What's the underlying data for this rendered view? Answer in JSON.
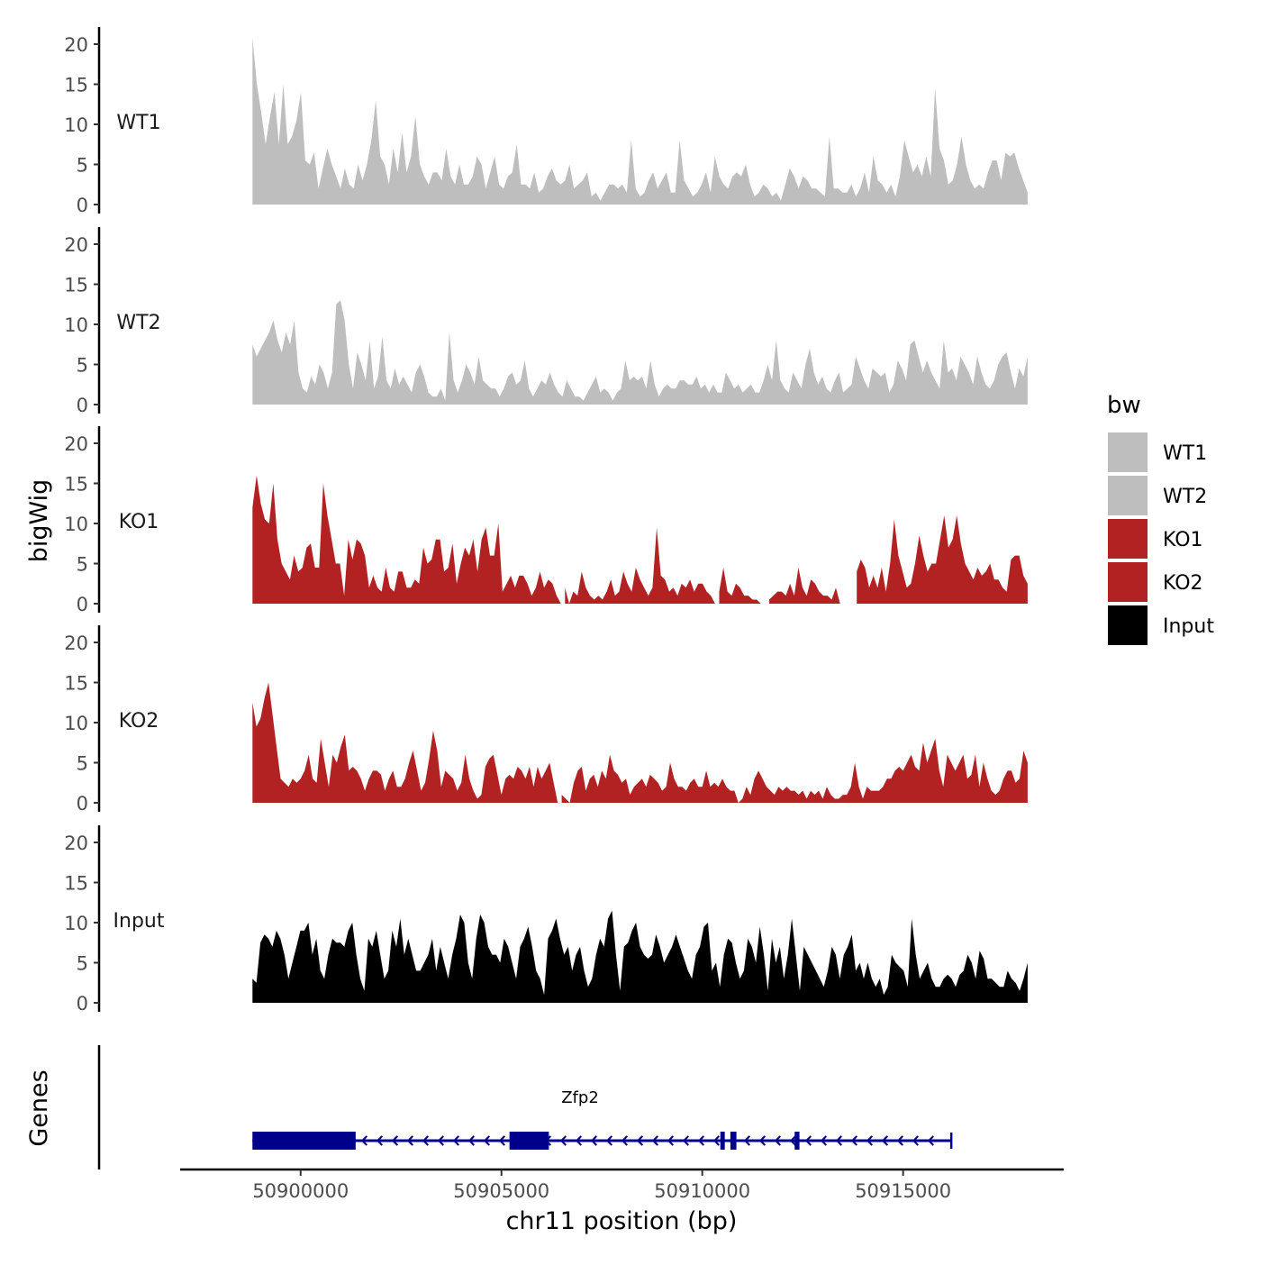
{
  "chart_data": {
    "type": "area",
    "title": "",
    "xlabel": "chr11 position (bp)",
    "ylabel": "bigWig",
    "genes_panel_label": "Genes",
    "xlim": [
      50897000,
      50919000
    ],
    "ylim": [
      0,
      21
    ],
    "x_ticks": [
      50900000,
      50905000,
      50910000,
      50915000
    ],
    "x_tick_labels": [
      "50900000",
      "50905000",
      "50910000",
      "50915000"
    ],
    "y_ticks": [
      0,
      5,
      10,
      15,
      20
    ],
    "y_tick_labels": [
      "0",
      "5",
      "10",
      "15",
      "20"
    ],
    "legend": {
      "title": "bw",
      "position": "right",
      "entries": [
        {
          "label": "WT1",
          "color": "#bebebe"
        },
        {
          "label": "WT2",
          "color": "#bebebe"
        },
        {
          "label": "KO1",
          "color": "#b22222"
        },
        {
          "label": "KO2",
          "color": "#b22222"
        },
        {
          "label": "Input",
          "color": "#000000"
        }
      ]
    },
    "region_start": 50898800,
    "region_end": 50918100,
    "series": [
      {
        "name": "WT1",
        "color": "#bebebe",
        "values": [
          20.8,
          15,
          11.5,
          7.5,
          11,
          14,
          7.5,
          15,
          7.5,
          8.5,
          10.5,
          14,
          5.5,
          5,
          6.5,
          2,
          4.5,
          7,
          5,
          3.5,
          2,
          4.5,
          2.5,
          2,
          5,
          3,
          5,
          8,
          13,
          6,
          5,
          2.5,
          7,
          4,
          9,
          4,
          6,
          11,
          5,
          3.5,
          2.5,
          4,
          4,
          3,
          7,
          3.5,
          2.5,
          5,
          2.5,
          2.5,
          3.5,
          6,
          5,
          2,
          4,
          6,
          2.5,
          2,
          3.5,
          4,
          7.5,
          2.5,
          2.5,
          2,
          4,
          1.5,
          2,
          3.5,
          4.5,
          3,
          2.5,
          3,
          5,
          2,
          2.5,
          3,
          4,
          1,
          1.5,
          0.5,
          1.5,
          2.5,
          2.5,
          2,
          2.5,
          1.5,
          8,
          2,
          1,
          1.5,
          3,
          4,
          2,
          3,
          4,
          1.5,
          1.5,
          8,
          3,
          2,
          1,
          1.5,
          2.5,
          4,
          1.5,
          6,
          3.5,
          2.5,
          2,
          3.5,
          4,
          3.5,
          5,
          2.5,
          1,
          1.5,
          2.5,
          2,
          1,
          1.5,
          0.5,
          2.5,
          4.5,
          3.5,
          2,
          3.5,
          3,
          2,
          2,
          1.5,
          1,
          8.5,
          2,
          2,
          1.5,
          1.5,
          2.5,
          1,
          2,
          4,
          1.5,
          6,
          3,
          2.5,
          1.5,
          2.5,
          1,
          3.5,
          8,
          6,
          4,
          5,
          3.5,
          6,
          3.5,
          14.5,
          7,
          5.5,
          2.5,
          3,
          5,
          8.5,
          5,
          3,
          2,
          2.5,
          2,
          4,
          5.5,
          5.5,
          3,
          6.5,
          6,
          6.5,
          4.5,
          3,
          1.5
        ]
      },
      {
        "name": "WT2",
        "color": "#bebebe",
        "values": [
          7.5,
          6,
          7,
          8,
          9,
          10.5,
          8,
          6.5,
          9,
          7.5,
          10.5,
          4,
          2,
          1.5,
          3.5,
          2.5,
          5,
          4,
          2,
          4,
          12.5,
          13,
          10.5,
          5,
          2,
          6.5,
          5,
          3,
          8,
          2,
          3.5,
          8.5,
          3,
          2,
          4.5,
          2.5,
          3.5,
          2.5,
          1.5,
          4,
          5,
          3.5,
          1.5,
          1,
          1,
          2,
          0.5,
          9,
          3,
          1.5,
          3,
          5,
          4,
          2.5,
          6,
          3,
          2.5,
          2,
          2,
          1,
          2,
          3.5,
          4,
          2.5,
          3,
          5.5,
          2,
          1,
          2,
          3,
          2.5,
          4,
          2.5,
          1.5,
          1,
          3,
          2,
          1,
          1,
          0.5,
          1.5,
          2.5,
          3.5,
          1.5,
          2,
          1.5,
          0.5,
          1.5,
          2,
          5.5,
          3,
          3.5,
          3,
          3.5,
          2,
          5.5,
          2.5,
          1,
          2,
          2.5,
          2,
          2,
          3,
          3,
          2.5,
          2.5,
          3.5,
          2,
          2.5,
          1.5,
          2.5,
          1.5,
          1.5,
          4,
          3,
          2,
          2.5,
          1.5,
          2,
          2.5,
          1.5,
          1.5,
          3,
          5,
          3,
          8,
          3,
          2,
          1.5,
          4,
          3,
          2,
          5,
          7,
          4,
          2.5,
          3.5,
          2,
          1.5,
          3,
          4,
          1.5,
          2,
          2.5,
          6,
          4.5,
          3,
          2,
          4.5,
          4,
          3.5,
          4,
          1.5,
          2.5,
          5.5,
          4.5,
          3,
          7.5,
          8,
          6,
          4,
          5.5,
          4,
          3,
          2,
          8,
          4,
          4.5,
          3,
          6,
          5,
          4,
          2.5,
          6,
          4,
          2.5,
          2,
          3,
          5,
          6,
          6.5,
          4,
          2,
          4.5,
          3.5,
          6
        ]
      },
      {
        "name": "KO1",
        "color": "#b22222",
        "values": [
          12,
          16,
          12.5,
          10.5,
          10,
          15,
          8,
          5,
          4,
          3,
          6,
          4,
          4.5,
          7,
          7.5,
          4.5,
          4.5,
          15,
          11,
          8,
          5,
          5,
          1,
          8,
          5.5,
          8,
          7.5,
          6,
          2,
          3.5,
          2,
          1.5,
          4.5,
          2,
          1.5,
          4,
          4,
          2,
          2,
          3,
          2.5,
          7,
          5,
          5.5,
          8,
          8,
          4,
          4.5,
          7.5,
          2.5,
          5,
          7,
          6,
          8,
          4,
          8,
          9.5,
          6,
          6,
          10,
          1.5,
          2.5,
          3.5,
          2,
          3.5,
          3.5,
          2.5,
          1,
          2,
          4,
          2,
          3,
          2.5,
          1,
          -1,
          2,
          0,
          1.5,
          1,
          4,
          2,
          1,
          0.5,
          1,
          0.5,
          1.5,
          3,
          1,
          1.5,
          4,
          2.5,
          1.5,
          4.5,
          3,
          2,
          1,
          2,
          9.5,
          3.5,
          3,
          1.5,
          2,
          1,
          2.5,
          2,
          3,
          1.5,
          2.5,
          2.5,
          1.5,
          1,
          -1,
          1.5,
          4.5,
          1.5,
          1,
          2.5,
          2,
          1,
          1,
          0.5,
          0.5,
          0,
          -1,
          0.5,
          1,
          1.5,
          1.5,
          1,
          2.5,
          1,
          4.5,
          2,
          1,
          3,
          2.5,
          1.5,
          1,
          1,
          0.5,
          2,
          -1,
          -1,
          -1,
          -1,
          4,
          5.5,
          4.5,
          2,
          3.5,
          2,
          4.5,
          1.5,
          5,
          10.5,
          6,
          4,
          2,
          2.5,
          5,
          8.5,
          6,
          4,
          5,
          5,
          8,
          11,
          7,
          8,
          11,
          7.5,
          5,
          4,
          3,
          4.5,
          3.5,
          4,
          5,
          3,
          3,
          2,
          1.5,
          5.5,
          6,
          6,
          3.5,
          2.5
        ]
      },
      {
        "name": "KO2",
        "color": "#b22222",
        "values": [
          12.5,
          9.5,
          10.5,
          13,
          15,
          11,
          7,
          3,
          2.5,
          2,
          3,
          2.5,
          3,
          4,
          6,
          3,
          2.5,
          8,
          5,
          2,
          6,
          5,
          7,
          8.5,
          4,
          4.5,
          4,
          3,
          1.5,
          3,
          4,
          4,
          3.5,
          1.5,
          3,
          4,
          2,
          2,
          3,
          5,
          6.5,
          4,
          1.5,
          2.5,
          5.5,
          9,
          6.5,
          2,
          4,
          3.5,
          3,
          1.5,
          2.5,
          6,
          3,
          1.5,
          0.5,
          1,
          4.5,
          5.5,
          6,
          3.5,
          1,
          3,
          3.5,
          3,
          4.5,
          4,
          3,
          4.5,
          2,
          4.5,
          3,
          4,
          5,
          2.5,
          -1,
          1,
          0.5,
          0,
          2.5,
          4,
          4.5,
          1.5,
          3,
          3.5,
          2,
          4,
          3,
          6,
          4,
          3.5,
          2.5,
          3,
          1,
          2,
          2.5,
          3,
          2,
          3.5,
          3,
          2.5,
          1.5,
          2,
          5,
          3,
          2,
          2,
          1.5,
          2.5,
          3,
          2,
          2,
          4,
          2,
          2.5,
          2,
          3,
          2,
          1.5,
          1.5,
          0,
          0.5,
          2,
          1,
          3,
          4,
          3,
          2,
          1.5,
          1,
          2,
          1.5,
          2,
          1.5,
          1.5,
          1,
          1.5,
          0.5,
          1.5,
          1,
          1.5,
          0.5,
          2,
          1,
          0.5,
          0.5,
          1,
          1,
          2,
          5,
          2,
          0.5,
          2,
          1.5,
          1.5,
          1.5,
          2,
          3,
          3,
          4,
          4.5,
          4,
          5,
          6,
          4.5,
          4,
          7.5,
          5,
          6.5,
          8,
          4,
          2,
          6,
          5,
          4,
          5,
          6,
          3,
          3.5,
          6,
          2,
          5,
          3,
          1.5,
          1,
          1.5,
          3,
          4,
          4,
          2.5,
          3,
          6.5,
          5
        ]
      },
      {
        "name": "Input",
        "color": "#000000",
        "values": [
          3,
          2.5,
          7.5,
          8.5,
          8,
          7,
          9,
          8,
          6,
          3,
          5,
          7,
          9,
          9,
          10,
          6,
          8,
          4,
          3,
          6,
          8,
          7.5,
          7.5,
          7,
          9,
          10,
          6,
          3,
          1.5,
          8,
          7,
          9,
          6,
          3,
          4,
          9,
          7,
          10.5,
          6,
          8,
          6,
          4,
          4,
          5,
          6,
          8,
          4,
          7,
          5,
          3,
          6,
          8,
          11,
          10,
          5,
          3,
          8,
          11,
          10,
          7,
          6,
          6,
          5,
          8,
          7,
          5,
          3,
          7,
          8,
          9.5,
          7,
          4,
          3,
          1,
          8,
          9,
          10.5,
          8,
          6,
          7,
          4,
          6,
          7,
          4,
          2,
          3,
          6,
          8,
          7,
          10.5,
          11.5,
          6,
          1.5,
          7,
          7.5,
          9,
          10,
          7,
          6,
          5.5,
          6,
          8.5,
          7,
          5,
          6,
          7,
          8.5,
          7,
          5.5,
          4,
          3,
          6,
          7,
          9.5,
          10,
          4,
          5,
          2,
          6,
          8,
          7.5,
          5,
          3,
          4,
          8,
          7,
          5,
          9.5,
          6,
          1.5,
          8,
          5,
          7,
          3,
          6,
          10.5,
          6,
          1.5,
          7,
          6,
          5,
          4,
          3,
          2,
          4,
          7,
          6,
          3,
          6,
          7,
          8.5,
          4,
          5,
          3,
          5,
          3,
          2,
          3,
          1,
          2,
          6,
          5,
          4.5,
          4,
          2,
          10.5,
          6,
          3,
          4,
          5,
          3,
          2,
          2,
          3,
          3.5,
          3,
          2,
          3.5,
          4,
          6,
          5,
          3,
          6.5,
          5.5,
          3,
          3,
          2.5,
          2,
          2,
          4,
          3,
          2.5,
          1.5,
          3,
          5
        ]
      }
    ],
    "genes": [
      {
        "name": "Zfp2",
        "strand": "-",
        "start": 50898800,
        "end": 50916200,
        "exons": [
          [
            50898800,
            50901370
          ],
          [
            50905200,
            50906180
          ],
          [
            50910450,
            50910560
          ],
          [
            50910700,
            50910850
          ],
          [
            50912300,
            50912420
          ]
        ]
      }
    ]
  }
}
